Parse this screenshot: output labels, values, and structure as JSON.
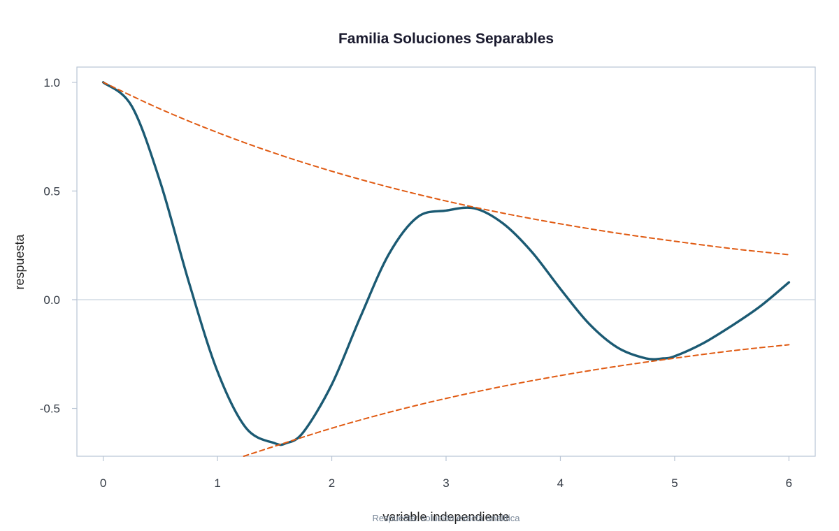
{
  "chart_data": {
    "type": "line",
    "title": "Familia Soluciones Separables",
    "xlabel": "variable independiente",
    "ylabel": "respuesta",
    "caption": "Respuesta: solución exacta analítica",
    "xlim": [
      -0.23,
      6.23
    ],
    "ylim": [
      -0.72,
      1.07
    ],
    "x_ticks": [
      0,
      1,
      2,
      3,
      4,
      5,
      6
    ],
    "x_tick_labels": [
      "0",
      "1",
      "2",
      "3",
      "4",
      "5",
      "6"
    ],
    "y_ticks": [
      -0.5,
      0.0,
      0.5,
      1.0
    ],
    "y_tick_labels": [
      "-0.5",
      "0.0",
      "0.5",
      "1.0"
    ],
    "reference_line_y": 0.0,
    "grid": false,
    "series": [
      {
        "color": "#1b5a73",
        "style": "solid",
        "x": [
          0.0,
          0.25,
          0.5,
          0.75,
          1.0,
          1.25,
          1.5,
          1.6,
          1.75,
          2.0,
          2.25,
          2.5,
          2.75,
          3.0,
          3.25,
          3.5,
          3.75,
          4.0,
          4.25,
          4.5,
          4.75,
          4.9,
          5.0,
          5.25,
          5.5,
          5.75,
          6.0
        ],
        "y": [
          1.0,
          0.89,
          0.54,
          0.08,
          -0.33,
          -0.59,
          -0.66,
          -0.66,
          -0.61,
          -0.39,
          -0.08,
          0.21,
          0.38,
          0.41,
          0.42,
          0.35,
          0.22,
          0.05,
          -0.11,
          -0.22,
          -0.27,
          -0.27,
          -0.26,
          -0.2,
          -0.12,
          -0.03,
          0.08
        ]
      },
      {
        "color": "#e05a12",
        "style": "dashed",
        "x": [
          0.0,
          0.5,
          1.0,
          1.5,
          2.0,
          2.5,
          3.0,
          3.5,
          4.0,
          4.5,
          5.0,
          5.5,
          6.0
        ],
        "y": [
          1.0,
          0.877,
          0.769,
          0.674,
          0.591,
          0.518,
          0.454,
          0.398,
          0.349,
          0.306,
          0.269,
          0.235,
          0.207
        ]
      },
      {
        "color": "#e05a12",
        "style": "dashed",
        "x": [
          1.23,
          1.5,
          2.0,
          2.5,
          3.0,
          3.5,
          4.0,
          4.5,
          5.0,
          5.5,
          6.0
        ],
        "y": [
          -0.72,
          -0.674,
          -0.591,
          -0.518,
          -0.454,
          -0.398,
          -0.349,
          -0.306,
          -0.269,
          -0.235,
          -0.207
        ]
      }
    ],
    "colors": {
      "frame": "#b8c4d4",
      "zero_line": "#c8d2de",
      "tick_text": "#333a44",
      "caption": "#7a8899"
    }
  }
}
